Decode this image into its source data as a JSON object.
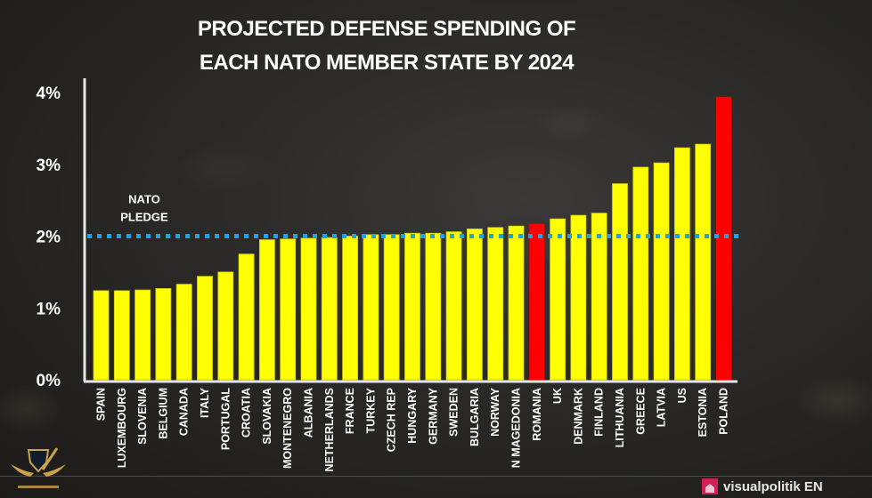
{
  "chart_data": {
    "type": "bar",
    "title": [
      "PROJECTED DEFENSE SPENDING OF",
      "EACH NATO MEMBER STATE BY 2024"
    ],
    "xlabel": "",
    "ylabel": "",
    "ylim": [
      0,
      4
    ],
    "yticks": [
      0,
      1,
      2,
      3,
      4
    ],
    "ytick_labels": [
      "0%",
      "1%",
      "2%",
      "3%",
      "4%"
    ],
    "grid": false,
    "legend": "none",
    "categories": [
      "SPAIN",
      "LUXEMBOURG",
      "SLOVENIA",
      "BELGIUM",
      "CANADA",
      "ITALY",
      "PORTUGAL",
      "CROATIA",
      "SLOVAKIA",
      "MONTENEGRO",
      "ALBANIA",
      "NETHERLANDS",
      "FRANCE",
      "TURKEY",
      "CZECH REP",
      "HUNGARY",
      "GERMANY",
      "SWEDEN",
      "BULGARIA",
      "NORWAY",
      "N MAGEDONIA",
      "ROMANIA",
      "UK",
      "DENMARK",
      "FINLAND",
      "LITHUANIA",
      "GREECE",
      "LATVIA",
      "US",
      "ESTONIA",
      "POLAND"
    ],
    "values": [
      1.24,
      1.24,
      1.25,
      1.27,
      1.33,
      1.44,
      1.5,
      1.75,
      1.95,
      1.96,
      1.97,
      1.98,
      2.0,
      2.02,
      2.02,
      2.04,
      2.04,
      2.06,
      2.1,
      2.12,
      2.14,
      2.17,
      2.24,
      2.29,
      2.32,
      2.73,
      2.96,
      3.02,
      3.23,
      3.28,
      3.94
    ],
    "highlighted": [
      "ROMANIA",
      "POLAND"
    ],
    "colors": {
      "default": "#ffff00",
      "highlight": "#ff0000",
      "pledge_line": "#1aa6e6",
      "axis": "#e6e6e6"
    },
    "reference_line": {
      "value": 2.0,
      "label": [
        "NATO",
        "PLEDGE"
      ],
      "style": "dotted"
    }
  },
  "branding": {
    "channel_name": "visualpolitik EN",
    "watermark": "emblem-shield-wings"
  }
}
